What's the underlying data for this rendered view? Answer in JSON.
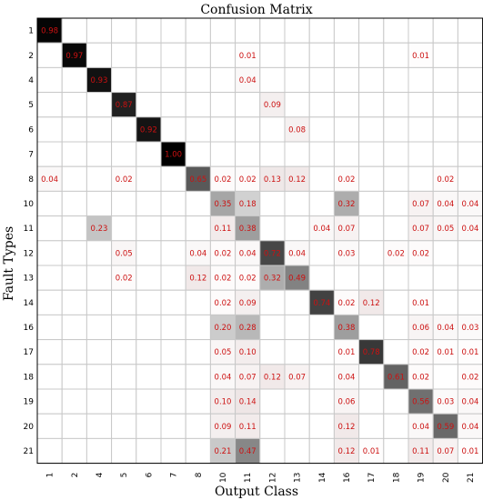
{
  "chart_data": {
    "type": "heatmap",
    "title": "Confusion Matrix",
    "xlabel": "Output Class",
    "ylabel": "Fault Types",
    "classes": [
      "1",
      "2",
      "4",
      "5",
      "6",
      "7",
      "8",
      "10",
      "11",
      "12",
      "13",
      "14",
      "16",
      "17",
      "18",
      "19",
      "20",
      "21"
    ],
    "value_range": [
      0,
      1
    ],
    "colors": {
      "low": "#ffffff",
      "high": "#000000",
      "label": "#cc1111",
      "grid": "#c8c8c8"
    },
    "matrix": [
      [
        0.98,
        0,
        0,
        0,
        0,
        0,
        0,
        0,
        0,
        0,
        0,
        0,
        0,
        0,
        0,
        0,
        0,
        0
      ],
      [
        0,
        0.97,
        0,
        0,
        0,
        0,
        0,
        0,
        0.01,
        0,
        0,
        0,
        0,
        0,
        0,
        0.01,
        0,
        0
      ],
      [
        0,
        0,
        0.93,
        0,
        0,
        0,
        0,
        0,
        0.04,
        0,
        0,
        0,
        0,
        0,
        0,
        0,
        0,
        0
      ],
      [
        0,
        0,
        0,
        0.87,
        0,
        0,
        0,
        0,
        0,
        0.09,
        0,
        0,
        0,
        0,
        0,
        0,
        0,
        0
      ],
      [
        0,
        0,
        0,
        0,
        0.92,
        0,
        0,
        0,
        0,
        0,
        0.08,
        0,
        0,
        0,
        0,
        0,
        0,
        0
      ],
      [
        0,
        0,
        0,
        0,
        0,
        1.0,
        0,
        0,
        0,
        0,
        0,
        0,
        0,
        0,
        0,
        0,
        0,
        0
      ],
      [
        0.04,
        0,
        0,
        0.02,
        0,
        0,
        0.65,
        0.02,
        0.02,
        0.13,
        0.12,
        0,
        0.02,
        0,
        0,
        0,
        0.02,
        0
      ],
      [
        0,
        0,
        0,
        0,
        0,
        0,
        0,
        0.35,
        0.18,
        0,
        0,
        0,
        0.32,
        0,
        0,
        0.07,
        0.04,
        0.04
      ],
      [
        0,
        0,
        0.23,
        0,
        0,
        0,
        0,
        0.11,
        0.38,
        0,
        0,
        0.04,
        0.07,
        0,
        0,
        0.07,
        0.05,
        0.04
      ],
      [
        0,
        0,
        0,
        0.05,
        0,
        0,
        0.04,
        0.02,
        0.04,
        0.72,
        0.04,
        0,
        0.03,
        0,
        0.02,
        0.02,
        0,
        0
      ],
      [
        0,
        0,
        0,
        0.02,
        0,
        0,
        0.12,
        0.02,
        0.02,
        0.32,
        0.49,
        0,
        0,
        0,
        0,
        0,
        0,
        0
      ],
      [
        0,
        0,
        0,
        0,
        0,
        0,
        0,
        0.02,
        0.09,
        0,
        0,
        0.74,
        0.02,
        0.12,
        0,
        0.01,
        0,
        0
      ],
      [
        0,
        0,
        0,
        0,
        0,
        0,
        0,
        0.2,
        0.28,
        0,
        0,
        0,
        0.38,
        0,
        0,
        0.06,
        0.04,
        0.03
      ],
      [
        0,
        0,
        0,
        0,
        0,
        0,
        0,
        0.05,
        0.1,
        0,
        0,
        0,
        0.01,
        0.78,
        0,
        0.02,
        0.01,
        0.01
      ],
      [
        0,
        0,
        0,
        0,
        0,
        0,
        0,
        0.04,
        0.07,
        0.12,
        0.07,
        0,
        0.04,
        0,
        0.61,
        0.02,
        0,
        0.02
      ],
      [
        0,
        0,
        0,
        0,
        0,
        0,
        0,
        0.1,
        0.14,
        0,
        0,
        0,
        0.06,
        0,
        0,
        0.56,
        0.03,
        0.04
      ],
      [
        0,
        0,
        0,
        0,
        0,
        0,
        0,
        0.09,
        0.11,
        0,
        0,
        0,
        0.12,
        0,
        0,
        0.04,
        0.59,
        0.04
      ],
      [
        0,
        0,
        0,
        0,
        0,
        0,
        0,
        0.21,
        0.47,
        0,
        0,
        0,
        0.12,
        0.01,
        0,
        0.11,
        0.07,
        0.01
      ]
    ]
  }
}
